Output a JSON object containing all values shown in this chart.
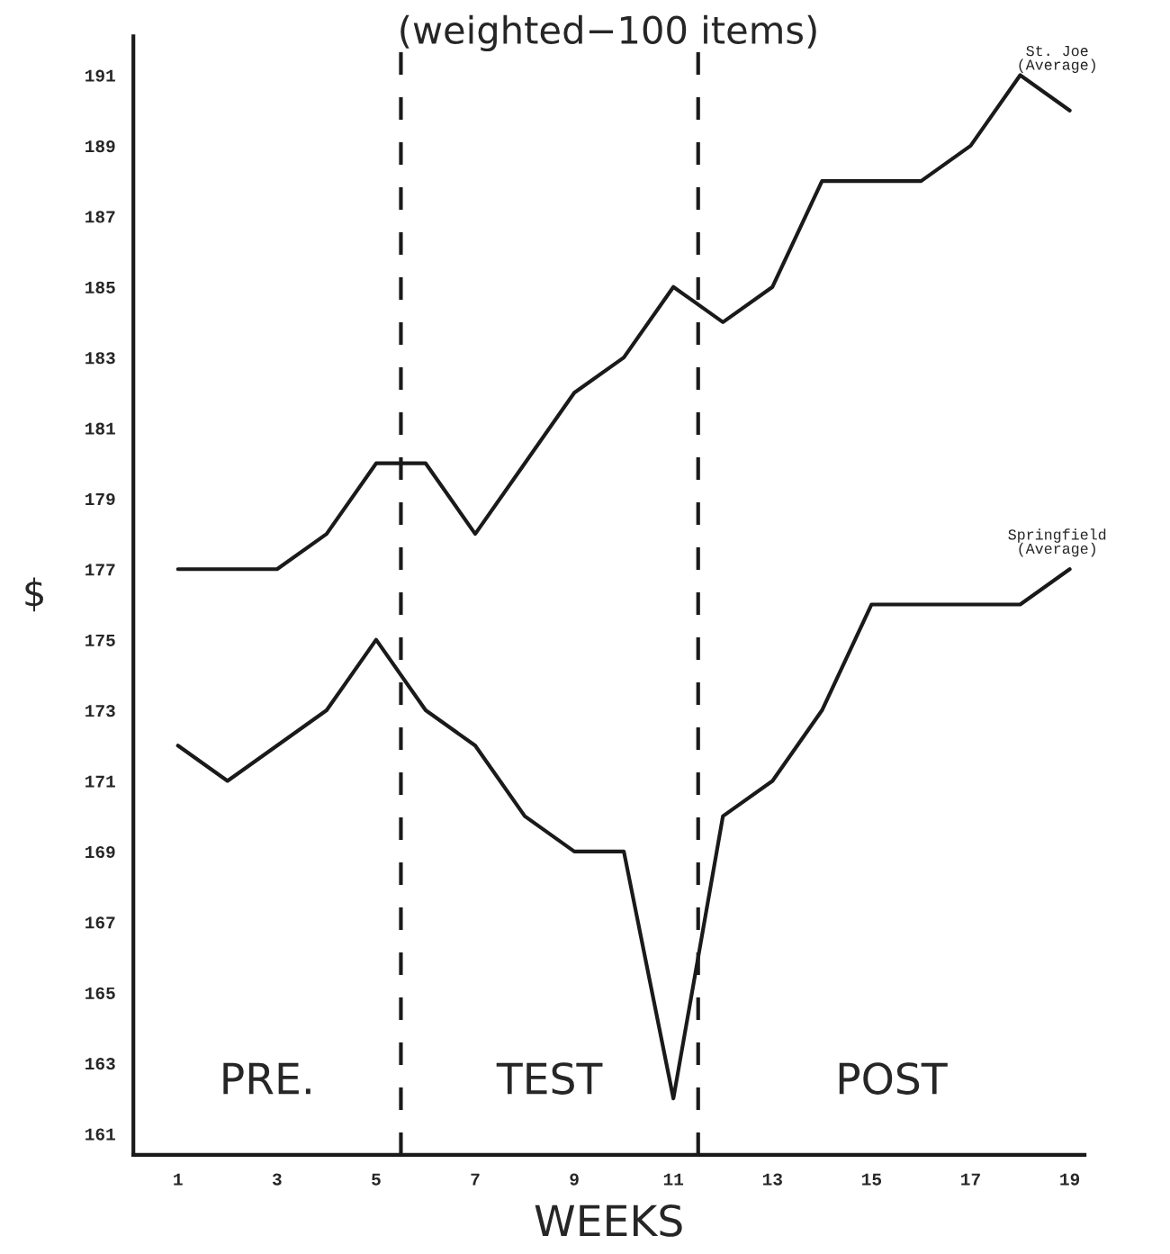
{
  "chart_data": {
    "type": "line",
    "title": "(weighted−100 items)",
    "xlabel": "WEEKS",
    "ylabel": "$",
    "x": [
      1,
      2,
      3,
      4,
      5,
      6,
      7,
      8,
      9,
      10,
      11,
      12,
      13,
      14,
      15,
      16,
      17,
      18,
      19
    ],
    "series": [
      {
        "name": "St. Joe\n(Average)",
        "color": "#1a1a1a",
        "values": [
          177,
          177,
          177,
          178,
          180,
          180,
          178,
          180,
          182,
          183,
          185,
          184,
          185,
          188,
          188,
          188,
          189,
          191,
          190
        ]
      },
      {
        "name": "Springfield\n(Average)",
        "color": "#1a1a1a",
        "values": [
          172,
          171,
          172,
          173,
          175,
          173,
          172,
          170,
          169,
          169,
          162,
          170,
          171,
          173,
          176,
          176,
          176,
          176,
          177
        ]
      }
    ],
    "xlim": [
      0.1,
      19.3
    ],
    "ylim": [
      160.4,
      192.1
    ],
    "xticks": [
      1,
      3,
      5,
      7,
      9,
      11,
      13,
      15,
      17,
      19
    ],
    "yticks": [
      161,
      163,
      165,
      167,
      169,
      171,
      173,
      175,
      177,
      179,
      181,
      183,
      185,
      187,
      189,
      191
    ],
    "ref_lines": [
      {
        "axis": "x",
        "value": 5.5,
        "color": "#1a1a1a",
        "line_style": "dashed"
      },
      {
        "axis": "x",
        "value": 11.5,
        "color": "#1a1a1a",
        "line_style": "dashed"
      }
    ],
    "annotations": [
      "PRE.",
      "TEST",
      "POST"
    ],
    "grid": false,
    "legend": false,
    "marker": "none",
    "line_style": "solid"
  }
}
